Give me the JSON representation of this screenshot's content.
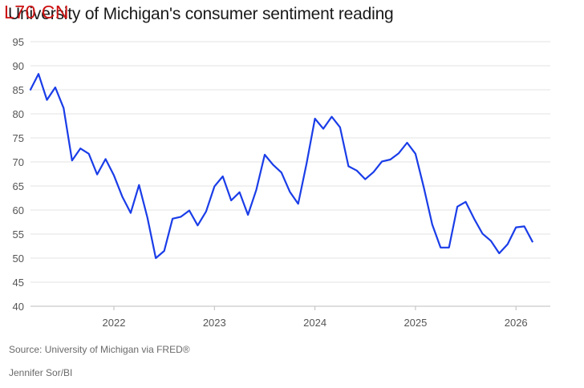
{
  "watermark": "L70 CN",
  "chart_data": {
    "type": "line",
    "title": "University of Michigan's consumer sentiment reading",
    "xlabel": "",
    "ylabel": "",
    "ylim": [
      40,
      95
    ],
    "yticks": [
      40,
      45,
      50,
      55,
      60,
      65,
      70,
      75,
      80,
      85,
      90,
      95
    ],
    "xticks": [
      "2022",
      "2023",
      "2024",
      "2025",
      "2026"
    ],
    "grid": true,
    "line_color": "#1a3de8",
    "series": [
      {
        "x": [
          "2021-03",
          "2021-04",
          "2021-05",
          "2021-06",
          "2021-07",
          "2021-08",
          "2021-09",
          "2021-10",
          "2021-11",
          "2021-12",
          "2022-01",
          "2022-02",
          "2022-03",
          "2022-04",
          "2022-05",
          "2022-06",
          "2022-07",
          "2022-08",
          "2022-09",
          "2022-10",
          "2022-11",
          "2022-12",
          "2023-01",
          "2023-02",
          "2023-03",
          "2023-04",
          "2023-05",
          "2023-06",
          "2023-07",
          "2023-08",
          "2023-09",
          "2023-10",
          "2023-11",
          "2023-12",
          "2024-01",
          "2024-02",
          "2024-03",
          "2024-04",
          "2024-05",
          "2024-06",
          "2024-07",
          "2024-08",
          "2024-09",
          "2024-10",
          "2024-11",
          "2024-12",
          "2025-01",
          "2025-02",
          "2025-03",
          "2025-04",
          "2025-05",
          "2025-06",
          "2025-07",
          "2025-08",
          "2025-09",
          "2025-10",
          "2025-11",
          "2025-12",
          "2026-01",
          "2026-02",
          "2026-03"
        ],
        "values": [
          84.9,
          88.3,
          82.9,
          85.5,
          81.2,
          70.3,
          72.8,
          71.7,
          67.4,
          70.6,
          67.2,
          62.8,
          59.4,
          65.2,
          58.4,
          50.0,
          51.5,
          58.2,
          58.6,
          59.9,
          56.8,
          59.7,
          64.9,
          67.0,
          62.0,
          63.7,
          59.0,
          64.2,
          71.5,
          69.4,
          67.8,
          63.8,
          61.3,
          69.7,
          79.0,
          76.9,
          79.4,
          77.2,
          69.1,
          68.2,
          66.4,
          67.9,
          70.1,
          70.5,
          71.8,
          74.0,
          71.7,
          64.7,
          57.0,
          52.2,
          52.2,
          60.7,
          61.7,
          58.2,
          55.1,
          53.6,
          51.0,
          52.9,
          56.4,
          56.6,
          53.3
        ]
      }
    ]
  },
  "source": "Source: University of Michigan via FRED®",
  "author": "Jennifer Sor/BI"
}
